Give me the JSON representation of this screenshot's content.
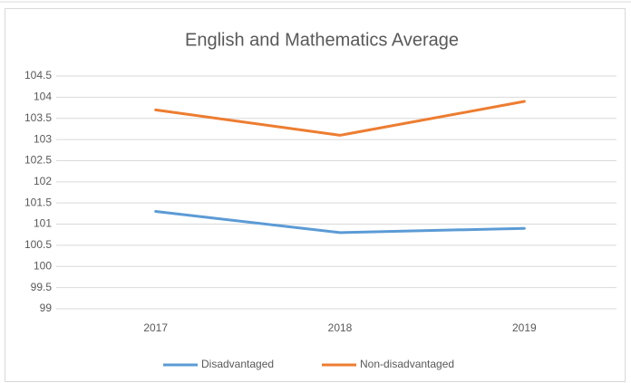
{
  "chart_data": {
    "type": "line",
    "title": "English and Mathematics Average",
    "categories": [
      "2017",
      "2018",
      "2019"
    ],
    "series": [
      {
        "name": "Disadvantaged",
        "color": "#5b9bd5",
        "values": [
          101.3,
          100.8,
          100.9
        ]
      },
      {
        "name": "Non-disadvantaged",
        "color": "#ed7d31",
        "values": [
          103.7,
          103.1,
          103.9
        ]
      }
    ],
    "ylim": [
      99,
      104.5
    ],
    "yticks": [
      99,
      99.5,
      100,
      100.5,
      101,
      101.5,
      102,
      102.5,
      103,
      103.5,
      104,
      104.5
    ],
    "grid": true,
    "legend": "bottom"
  }
}
